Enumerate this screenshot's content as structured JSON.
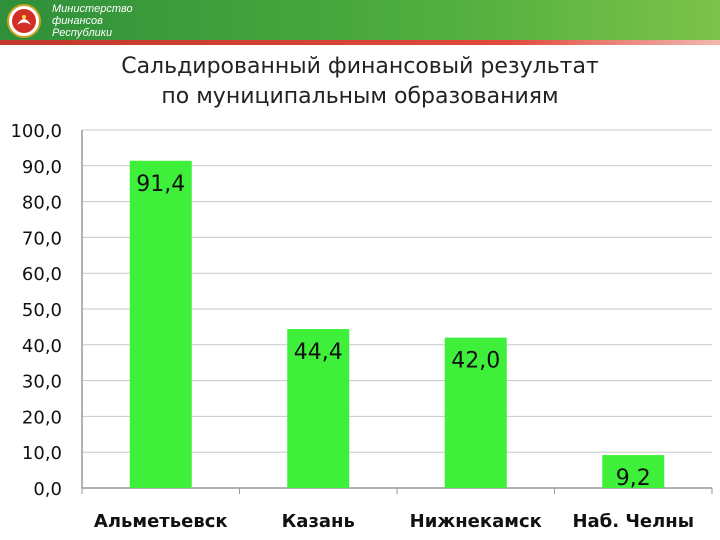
{
  "header": {
    "ministry_line1": "Министерство",
    "ministry_line2": "финансов",
    "ministry_line3": "Республики",
    "band_color": "#3d9b3c",
    "stripe_color": "#d9442f",
    "emblem_icon": "tatarstan-emblem-icon"
  },
  "chart_data": {
    "type": "bar",
    "title_line1": "Сальдированный финансовый результат",
    "title_line2": "по муниципальным образованиям",
    "categories": [
      "Альметьевск",
      "Казань",
      "Нижнекамск",
      "Наб. Челны"
    ],
    "values": [
      91.4,
      44.4,
      42.0,
      9.2
    ],
    "value_labels": [
      "91,4",
      "44,4",
      "42,0",
      "9,2"
    ],
    "ylim": [
      0,
      100
    ],
    "yticks": [
      0,
      10,
      20,
      30,
      40,
      50,
      60,
      70,
      80,
      90,
      100
    ],
    "ytick_labels": [
      "0,0",
      "10,0",
      "20,0",
      "30,0",
      "40,0",
      "50,0",
      "60,0",
      "70,0",
      "80,0",
      "90,0",
      "100,0"
    ],
    "grid": true,
    "bar_color": "#3ff03a",
    "legend": "none"
  }
}
